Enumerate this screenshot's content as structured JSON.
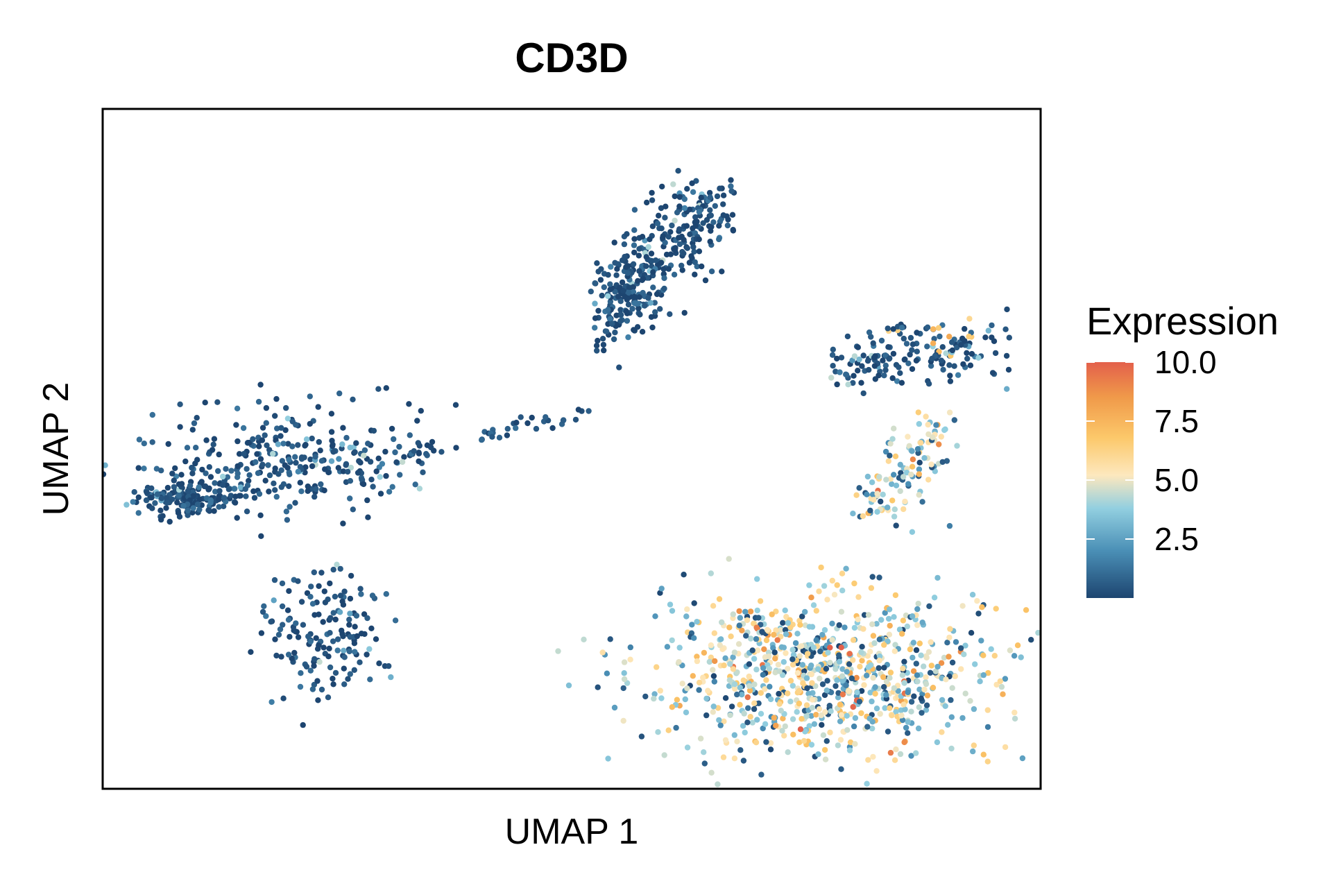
{
  "chart_data": {
    "type": "scatter",
    "title": "CD3D",
    "xlabel": "UMAP 1",
    "ylabel": "UMAP 2",
    "xlim": [
      -10,
      12
    ],
    "ylim": [
      -8,
      12
    ],
    "grid": false,
    "axis_ticks": false,
    "color_scale": {
      "title": "Expression",
      "range": [
        0,
        10
      ],
      "ticks": [
        "2.5",
        "5.0",
        "7.5",
        "10.0"
      ],
      "tick_values": [
        2.5,
        5.0,
        7.5,
        10.0
      ],
      "colors": [
        "#1d4570",
        "#4a8fb6",
        "#92cfe0",
        "#fde8be",
        "#fcc86a",
        "#f09a4a",
        "#e3604b"
      ]
    },
    "clusters": [
      {
        "id": "upper-island",
        "center": [
          3.0,
          7.5
        ],
        "count": 380,
        "expression_mean": 0.8
      },
      {
        "id": "left-island",
        "center": [
          -5.8,
          1.5
        ],
        "count": 450,
        "expression_mean": 0.8
      },
      {
        "id": "lower-left-island",
        "center": [
          -4.7,
          -3.5
        ],
        "count": 160,
        "expression_mean": 0.8
      },
      {
        "id": "bridge-strand",
        "center": [
          -0.7,
          2.5
        ],
        "count": 40,
        "expression_mean": 1.0
      },
      {
        "id": "right-small-island",
        "center": [
          9.0,
          4.8
        ],
        "count": 170,
        "expression_mean": 1.2
      },
      {
        "id": "large-lower-right-island",
        "center": [
          7.0,
          -3.8
        ],
        "count": 1000,
        "expression_mean": 4.5
      }
    ]
  }
}
